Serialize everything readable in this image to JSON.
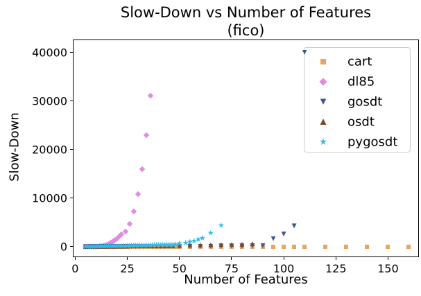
{
  "chart_data": {
    "type": "scatter",
    "title_line1": "Slow-Down vs Number of Features",
    "title_line2": "(fico)",
    "xlabel": "Number of Features",
    "ylabel": "Slow-Down",
    "xlim": [
      -0.8,
      164.5
    ],
    "ylim": [
      -2000,
      42570
    ],
    "grid": false,
    "legend_position": "upper right",
    "xticks": [
      {
        "v": 0,
        "label": "0"
      },
      {
        "v": 25,
        "label": "25"
      },
      {
        "v": 50,
        "label": "50"
      },
      {
        "v": 75,
        "label": "75"
      },
      {
        "v": 100,
        "label": "100"
      },
      {
        "v": 125,
        "label": "125"
      },
      {
        "v": 150,
        "label": "150"
      }
    ],
    "yticks": [
      {
        "v": 0,
        "label": "0"
      },
      {
        "v": 10000,
        "label": "10000"
      },
      {
        "v": 20000,
        "label": "20000"
      },
      {
        "v": 30000,
        "label": "30000"
      },
      {
        "v": 40000,
        "label": "40000"
      }
    ],
    "series": [
      {
        "name": "cart",
        "marker": "square",
        "color": "#E9A55F",
        "points": [
          [
            5,
            25
          ],
          [
            6,
            25
          ],
          [
            7,
            25
          ],
          [
            8,
            25
          ],
          [
            9,
            25
          ],
          [
            10,
            25
          ],
          [
            11,
            25
          ],
          [
            12,
            25
          ],
          [
            13,
            25
          ],
          [
            14,
            25
          ],
          [
            15,
            25
          ],
          [
            16,
            25
          ],
          [
            17,
            25
          ],
          [
            18,
            25
          ],
          [
            19,
            25
          ],
          [
            20,
            25
          ],
          [
            21,
            25
          ],
          [
            22,
            25
          ],
          [
            23,
            25
          ],
          [
            24,
            25
          ],
          [
            25,
            25
          ],
          [
            26,
            25
          ],
          [
            27,
            25
          ],
          [
            28,
            25
          ],
          [
            29,
            25
          ],
          [
            30,
            25
          ],
          [
            31,
            25
          ],
          [
            32,
            25
          ],
          [
            33,
            25
          ],
          [
            34,
            25
          ],
          [
            35,
            25
          ],
          [
            36,
            25
          ],
          [
            37,
            25
          ],
          [
            38,
            25
          ],
          [
            39,
            25
          ],
          [
            40,
            25
          ],
          [
            41,
            25
          ],
          [
            42,
            25
          ],
          [
            43,
            25
          ],
          [
            44,
            25
          ],
          [
            45,
            25
          ],
          [
            46,
            25
          ],
          [
            47,
            25
          ],
          [
            48,
            25
          ],
          [
            49,
            25
          ],
          [
            50,
            25
          ],
          [
            55,
            25
          ],
          [
            60,
            25
          ],
          [
            65,
            25
          ],
          [
            70,
            25
          ],
          [
            75,
            25
          ],
          [
            80,
            25
          ],
          [
            85,
            25
          ],
          [
            90,
            25
          ],
          [
            95,
            25
          ],
          [
            100,
            25
          ],
          [
            105,
            25
          ],
          [
            110,
            25
          ],
          [
            120,
            25
          ],
          [
            130,
            25
          ],
          [
            140,
            25
          ],
          [
            150,
            25
          ],
          [
            160,
            25
          ]
        ]
      },
      {
        "name": "dl85",
        "marker": "diamond",
        "color": "#DF8CE2",
        "points": [
          [
            5,
            8
          ],
          [
            6,
            10
          ],
          [
            7,
            14
          ],
          [
            8,
            20
          ],
          [
            9,
            28
          ],
          [
            10,
            40
          ],
          [
            11,
            60
          ],
          [
            12,
            95
          ],
          [
            13,
            150
          ],
          [
            14,
            240
          ],
          [
            15,
            420
          ],
          [
            16,
            600
          ],
          [
            17,
            820
          ],
          [
            18,
            1080
          ],
          [
            19,
            1400
          ],
          [
            20,
            1750
          ],
          [
            21,
            2150
          ],
          [
            22,
            2600
          ],
          [
            24,
            3150
          ],
          [
            26,
            4700
          ],
          [
            28,
            7300
          ],
          [
            30,
            10800
          ],
          [
            32,
            16050
          ],
          [
            34,
            22950
          ],
          [
            36,
            31100
          ]
        ]
      },
      {
        "name": "gosdt",
        "marker": "triangle-down",
        "color": "#3E5794",
        "points": [
          [
            5,
            40
          ],
          [
            7,
            45
          ],
          [
            9,
            45
          ],
          [
            11,
            50
          ],
          [
            13,
            50
          ],
          [
            15,
            55
          ],
          [
            17,
            55
          ],
          [
            19,
            60
          ],
          [
            21,
            60
          ],
          [
            23,
            65
          ],
          [
            25,
            65
          ],
          [
            27,
            70
          ],
          [
            29,
            70
          ],
          [
            31,
            75
          ],
          [
            33,
            75
          ],
          [
            35,
            80
          ],
          [
            37,
            80
          ],
          [
            39,
            85
          ],
          [
            41,
            90
          ],
          [
            43,
            95
          ],
          [
            45,
            100
          ],
          [
            47,
            105
          ],
          [
            50,
            110
          ],
          [
            55,
            120
          ],
          [
            60,
            130
          ],
          [
            65,
            140
          ],
          [
            70,
            155
          ],
          [
            75,
            170
          ],
          [
            80,
            190
          ],
          [
            85,
            215
          ],
          [
            90,
            250
          ],
          [
            95,
            1680
          ],
          [
            100,
            2620
          ],
          [
            105,
            4300
          ],
          [
            110,
            40100
          ]
        ]
      },
      {
        "name": "osdt",
        "marker": "triangle-up",
        "color": "#7B4A2B",
        "points": [
          [
            5,
            60
          ],
          [
            7,
            65
          ],
          [
            9,
            70
          ],
          [
            11,
            75
          ],
          [
            13,
            80
          ],
          [
            15,
            90
          ],
          [
            17,
            100
          ],
          [
            19,
            110
          ],
          [
            21,
            120
          ],
          [
            23,
            130
          ],
          [
            25,
            140
          ],
          [
            27,
            150
          ],
          [
            29,
            160
          ],
          [
            31,
            170
          ],
          [
            33,
            180
          ],
          [
            35,
            190
          ],
          [
            37,
            200
          ],
          [
            39,
            210
          ],
          [
            41,
            220
          ],
          [
            43,
            230
          ],
          [
            45,
            240
          ],
          [
            47,
            260
          ],
          [
            50,
            280
          ],
          [
            55,
            320
          ],
          [
            60,
            360
          ],
          [
            65,
            420
          ],
          [
            70,
            470
          ],
          [
            75,
            470
          ],
          [
            80,
            520
          ],
          [
            85,
            620
          ]
        ]
      },
      {
        "name": "pygosdt",
        "marker": "star",
        "color": "#33BBEB",
        "points": [
          [
            5,
            80
          ],
          [
            6,
            85
          ],
          [
            7,
            90
          ],
          [
            8,
            95
          ],
          [
            9,
            100
          ],
          [
            10,
            105
          ],
          [
            11,
            110
          ],
          [
            12,
            115
          ],
          [
            13,
            120
          ],
          [
            14,
            130
          ],
          [
            15,
            140
          ],
          [
            16,
            150
          ],
          [
            17,
            160
          ],
          [
            18,
            170
          ],
          [
            19,
            180
          ],
          [
            20,
            190
          ],
          [
            21,
            200
          ],
          [
            22,
            210
          ],
          [
            23,
            220
          ],
          [
            24,
            230
          ],
          [
            25,
            240
          ],
          [
            26,
            250
          ],
          [
            27,
            260
          ],
          [
            28,
            270
          ],
          [
            29,
            280
          ],
          [
            30,
            290
          ],
          [
            31,
            300
          ],
          [
            32,
            310
          ],
          [
            33,
            320
          ],
          [
            34,
            330
          ],
          [
            35,
            340
          ],
          [
            36,
            350
          ],
          [
            37,
            360
          ],
          [
            38,
            370
          ],
          [
            39,
            380
          ],
          [
            40,
            390
          ],
          [
            41,
            400
          ],
          [
            42,
            410
          ],
          [
            43,
            420
          ],
          [
            44,
            430
          ],
          [
            45,
            440
          ],
          [
            46,
            450
          ],
          [
            47,
            470
          ],
          [
            48,
            520
          ],
          [
            50,
            710
          ],
          [
            53,
            820
          ],
          [
            55,
            1040
          ],
          [
            57,
            1190
          ],
          [
            59,
            1530
          ],
          [
            61,
            1820
          ],
          [
            65,
            2860
          ],
          [
            70,
            4430
          ]
        ]
      }
    ]
  }
}
